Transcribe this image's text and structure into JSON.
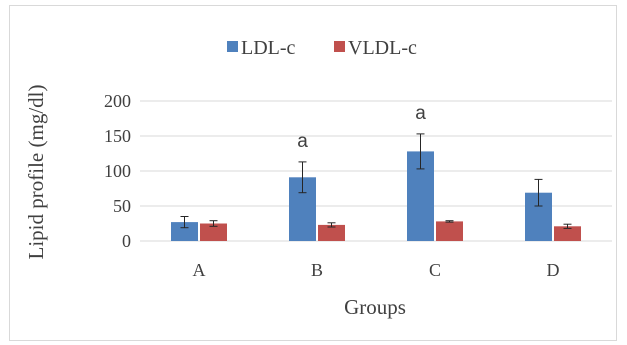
{
  "chart_data": {
    "type": "bar",
    "categories": [
      "A",
      "B",
      "C",
      "D"
    ],
    "series": [
      {
        "name": "LDL-c",
        "color": "#4f81bd",
        "values": [
          27,
          91,
          128,
          69
        ],
        "errors": [
          8,
          22,
          25,
          19
        ]
      },
      {
        "name": "VLDL-c",
        "color": "#c0504d",
        "values": [
          25,
          23,
          28,
          21
        ],
        "errors": [
          4,
          3,
          1,
          3
        ]
      }
    ],
    "annotations": [
      {
        "category": "B",
        "series": "LDL-c",
        "text": "a"
      },
      {
        "category": "C",
        "series": "LDL-c",
        "text": "a"
      }
    ],
    "title": "",
    "xlabel": "Groups",
    "ylabel": "Lipid profile (mg/dl)",
    "ylim": [
      0,
      200
    ],
    "yticks": [
      0,
      50,
      100,
      150,
      200
    ],
    "grid": true,
    "legend": "top"
  }
}
